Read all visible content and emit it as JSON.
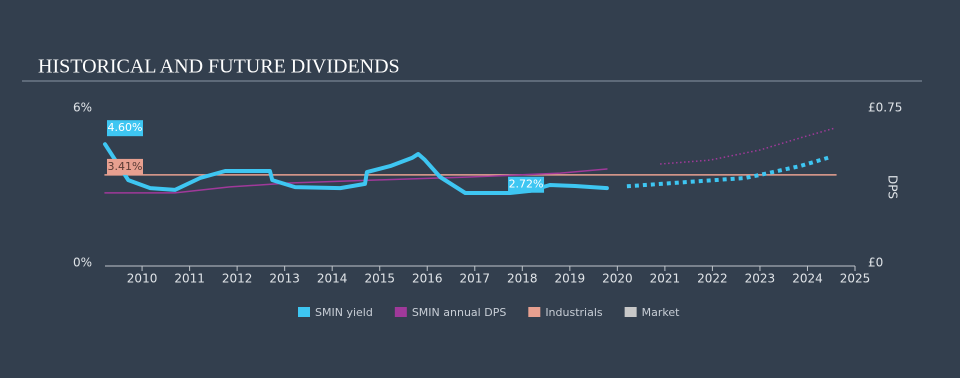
{
  "chart_data": {
    "type": "line",
    "title": "HISTORICAL AND FUTURE DIVIDENDS",
    "y2_label": "DPS",
    "xlim": [
      2009.22,
      2025
    ],
    "xticks": [
      2010,
      2011,
      2012,
      2013,
      2014,
      2015,
      2016,
      2017,
      2018,
      2019,
      2020,
      2021,
      2022,
      2023,
      2024,
      2025
    ],
    "ylim": [
      0,
      6
    ],
    "yticks": [
      {
        "value": 0,
        "label": "0%"
      },
      {
        "value": 6,
        "label": "6%"
      }
    ],
    "y2lim": [
      0,
      0.75
    ],
    "y2ticks": [
      {
        "value": 0,
        "label": "£0"
      },
      {
        "value": 0.75,
        "label": "£0.75"
      }
    ],
    "series": [
      {
        "name": "SMIN yield",
        "color": "#3ec6f2",
        "x": [
          2009.22,
          2009.71,
          2010.17,
          2010.69,
          2011.22,
          2011.75,
          2012.69,
          2012.74,
          2013.22,
          2014.17,
          2014.69,
          2014.73,
          2015.22,
          2015.68,
          2015.81,
          2015.95,
          2016.27,
          2016.8,
          2017.74,
          2018.16,
          2018.58,
          2019.11,
          2019.78
        ],
        "values": [
          4.6,
          3.21,
          2.9,
          2.83,
          3.29,
          3.56,
          3.56,
          3.21,
          2.94,
          2.9,
          3.06,
          3.52,
          3.75,
          4.07,
          4.22,
          3.99,
          3.33,
          2.71,
          2.71,
          2.79,
          3.02,
          2.98,
          2.9
        ],
        "forecast": {
          "x": [
            2020.2,
            2021.74,
            2022.69,
            2023.0,
            2023.84,
            2024.48
          ],
          "values": [
            2.97,
            3.17,
            3.29,
            3.41,
            3.75,
            4.1
          ]
        }
      },
      {
        "name": "SMIN annual DPS",
        "color": "#a0399a",
        "axis": "y2",
        "x": [
          2009.22,
          2010.69,
          2011.85,
          2013.1,
          2015.0,
          2016.9,
          2018.8,
          2019.78
        ],
        "values": [
          0.339,
          0.339,
          0.368,
          0.387,
          0.402,
          0.416,
          0.435,
          0.455
        ],
        "forecast": {
          "x": [
            2020.9,
            2021.95,
            2023.0,
            2023.84,
            2024.58
          ],
          "values": [
            0.479,
            0.498,
            0.547,
            0.605,
            0.653
          ]
        }
      },
      {
        "name": "Industrials",
        "color": "#e8a090",
        "x": [
          2009.22,
          2024.6
        ],
        "values": [
          3.41,
          3.41
        ]
      },
      {
        "name": "Market",
        "color": "#c8c8c8",
        "x": [],
        "values": []
      }
    ],
    "annotations": [
      {
        "x": 2009.22,
        "value": 4.6,
        "label": "4.60%",
        "color": "#3ec6f2"
      },
      {
        "x": 2009.22,
        "value": 3.41,
        "label": "3.41%",
        "color": "#e8a090"
      },
      {
        "x": 2017.7,
        "value": 2.72,
        "label": "2.72%",
        "color": "#3ec6f2"
      }
    ]
  }
}
